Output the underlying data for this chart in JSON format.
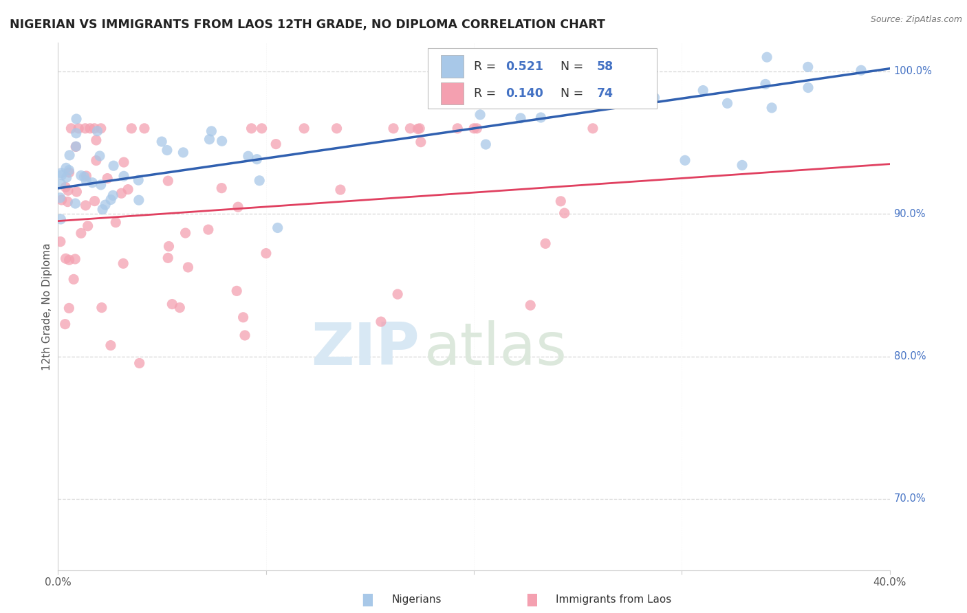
{
  "title": "NIGERIAN VS IMMIGRANTS FROM LAOS 12TH GRADE, NO DIPLOMA CORRELATION CHART",
  "source": "Source: ZipAtlas.com",
  "ylabel": "12th Grade, No Diploma",
  "blue_R": 0.521,
  "blue_N": 58,
  "pink_R": 0.14,
  "pink_N": 74,
  "legend_label_blue": "Nigerians",
  "legend_label_pink": "Immigrants from Laos",
  "blue_color": "#a8c8e8",
  "pink_color": "#f4a0b0",
  "blue_line_color": "#3060b0",
  "pink_line_color": "#e04060",
  "blue_legend_color": "#a8c8e8",
  "pink_legend_color": "#f4a0b0",
  "label_color": "#4472c4",
  "title_color": "#222222",
  "source_color": "#777777",
  "ylabel_color": "#555555",
  "tick_color": "#555555",
  "grid_color": "#cccccc",
  "watermark_zip_color": "#d8e8f4",
  "watermark_atlas_color": "#dce8dc",
  "xlim": [
    0,
    40
  ],
  "ylim": [
    65,
    102
  ],
  "y_ticks": [
    70,
    80,
    90,
    100
  ],
  "y_tick_labels": [
    "70.0%",
    "80.0%",
    "90.0%",
    "100.0%"
  ],
  "x_ticks": [
    0,
    10,
    20,
    30,
    40
  ],
  "x_tick_labels": [
    "0.0%",
    "",
    "",
    "",
    "40.0%"
  ],
  "blue_line_x0": 0,
  "blue_line_y0": 91.8,
  "blue_line_x1": 40,
  "blue_line_y1": 100.2,
  "pink_line_x0": 0,
  "pink_line_y0": 89.5,
  "pink_line_x1": 40,
  "pink_line_y1": 93.5,
  "seed": 17
}
